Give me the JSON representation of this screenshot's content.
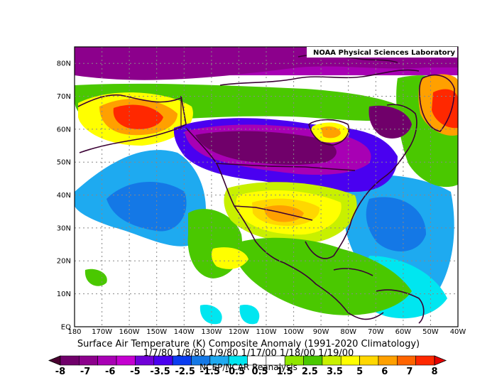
{
  "header": {
    "lab_label": "NOAA Physical Sciences Laboratory"
  },
  "map": {
    "lon_labels": [
      "180",
      "170W",
      "160W",
      "150W",
      "140W",
      "130W",
      "120W",
      "110W",
      "100W",
      "90W",
      "80W",
      "70W",
      "60W",
      "50W",
      "40W"
    ],
    "lat_labels": [
      "EQ",
      "10N",
      "20N",
      "30N",
      "40N",
      "50N",
      "60N",
      "70N",
      "80N"
    ]
  },
  "caption": {
    "title": "Surface Air Temperature (K) Composite Anomaly (1991-2020 Climatology)",
    "dates": "1/7/80 1/8/80 1/9/80 1/17/00 1/18/00 1/19/00",
    "source": "NCEP/NCAR Reanalysis"
  },
  "colorbar": {
    "ticks": [
      "-8",
      "-7",
      "-6",
      "-5",
      "-3.5",
      "-2.5",
      "-1.5",
      "-0.5",
      "0.5",
      "1.5",
      "2.5",
      "3.5",
      "5",
      "6",
      "7",
      "8"
    ],
    "colors": [
      "#4a0030",
      "#70006a",
      "#8c008c",
      "#a800b4",
      "#c400d0",
      "#7000d8",
      "#4a00f0",
      "#0a3cf0",
      "#1478e6",
      "#1eaaf0",
      "#00e6f0",
      "#ffffff",
      "#ffffff",
      "#90e600",
      "#4ac800",
      "#c8f000",
      "#ffff00",
      "#ffd700",
      "#ffa000",
      "#ff6400",
      "#ff2800",
      "#e60000"
    ]
  }
}
